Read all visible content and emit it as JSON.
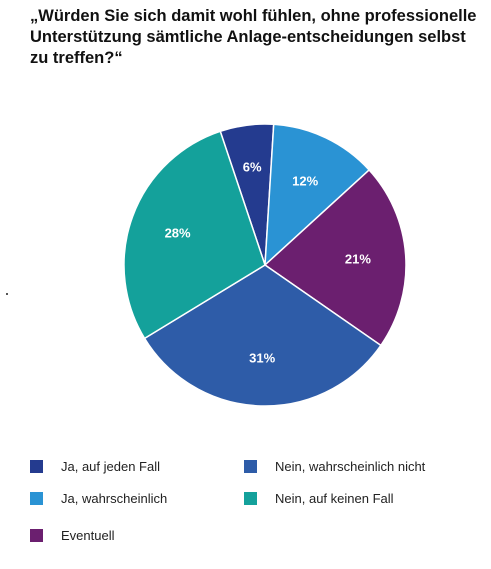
{
  "chart_data": {
    "type": "pie",
    "title": "„Würden Sie sich damit wohl fühlen, ohne professionelle Unterstützung sämtliche Anlage-entscheidungen selbst zu treffen?“",
    "slices": [
      {
        "name": "Ja, auf jeden Fall",
        "value": 6,
        "label": "6%",
        "color": "#243b8f"
      },
      {
        "name": "Ja, wahrscheinlich",
        "value": 12,
        "label": "12%",
        "color": "#2a93d4"
      },
      {
        "name": "Eventuell",
        "value": 21,
        "label": "21%",
        "color": "#6b1f6f"
      },
      {
        "name": "Nein, wahrscheinlich nicht",
        "value": 31,
        "label": "31%",
        "color": "#2e5ca8"
      },
      {
        "name": "Nein, auf keinen Fall",
        "value": 28,
        "label": "28%",
        "color": "#14a19b"
      }
    ],
    "legend": {
      "placement": "bottom",
      "entries": [
        {
          "label": "Ja, auf jeden Fall",
          "color": "#243b8f"
        },
        {
          "label": "Nein, wahrscheinlich nicht",
          "color": "#2e5ca8"
        },
        {
          "label": "Ja, wahrscheinlich",
          "color": "#2a93d4"
        },
        {
          "label": "Nein, auf keinen Fall",
          "color": "#14a19b"
        },
        {
          "label": "Eventuell",
          "color": "#6b1f6f"
        }
      ]
    }
  }
}
